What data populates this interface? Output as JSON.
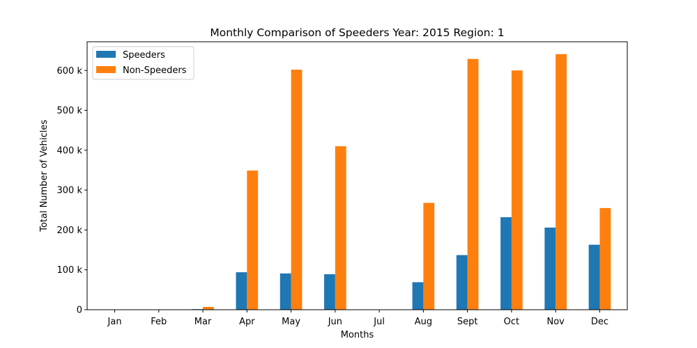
{
  "chart_data": {
    "type": "bar",
    "title": "Monthly Comparison of Speeders Year: 2015 Region: 1",
    "xlabel": "Months",
    "ylabel": "Total Number of Vehicles",
    "categories": [
      "Jan",
      "Feb",
      "Mar",
      "Apr",
      "May",
      "Jun",
      "Jul",
      "Aug",
      "Sept",
      "Oct",
      "Nov",
      "Dec"
    ],
    "series": [
      {
        "name": "Speeders",
        "color": "#1f77b4",
        "values": [
          0,
          0,
          1500,
          94000,
          91000,
          89000,
          0,
          69000,
          137000,
          232000,
          206000,
          163000
        ]
      },
      {
        "name": "Non-Speeders",
        "color": "#ff7f0e",
        "values": [
          0,
          0,
          7000,
          349000,
          602000,
          410000,
          0,
          268000,
          629000,
          600000,
          641000,
          255000
        ]
      }
    ],
    "ylim": [
      0,
      672000
    ],
    "yticks": [
      0,
      100000,
      200000,
      300000,
      400000,
      500000,
      600000
    ],
    "ytick_labels": [
      "0",
      "100 k",
      "200 k",
      "300 k",
      "400 k",
      "500 k",
      "600 k"
    ],
    "grid": false,
    "legend_position": "top-left"
  }
}
